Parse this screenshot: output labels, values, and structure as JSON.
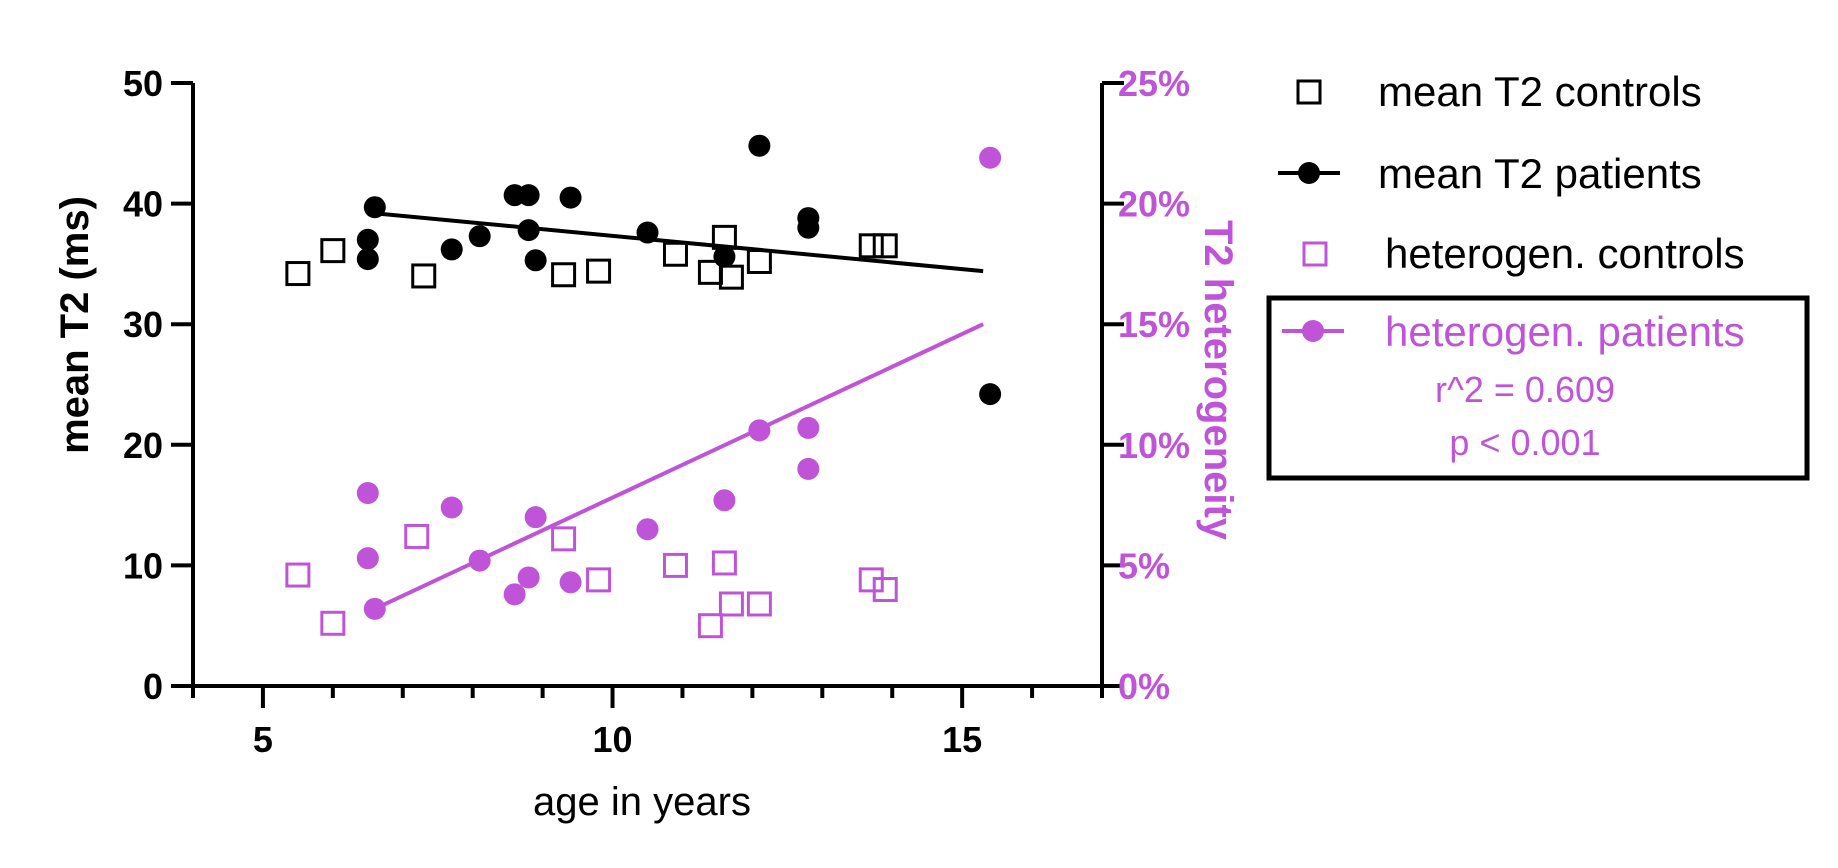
{
  "colors": {
    "black": "#000000",
    "purple": "#c054d9"
  },
  "chart_data": {
    "type": "scatter",
    "x_axis": {
      "label": "age in years",
      "range": [
        4,
        17
      ],
      "ticks": [
        5,
        10,
        15
      ],
      "tick_labels": [
        "5",
        "10",
        "15"
      ],
      "minor_ticks": [
        4,
        6,
        7,
        8,
        9,
        11,
        12,
        13,
        14,
        16,
        17
      ]
    },
    "y_axis_left": {
      "label": "mean T2 (ms)",
      "range": [
        0,
        50
      ],
      "ticks": [
        0,
        10,
        20,
        30,
        40,
        50
      ],
      "tick_labels": [
        "0",
        "10",
        "20",
        "30",
        "40",
        "50"
      ]
    },
    "y_axis_right": {
      "label": "T2 heterogeneity",
      "range": [
        0,
        25
      ],
      "ticks": [
        0,
        5,
        10,
        15,
        20,
        25
      ],
      "tick_labels": [
        "0%",
        "5%",
        "10%",
        "15%",
        "20%",
        "25%"
      ]
    },
    "series": [
      {
        "name": "mean T2 controls",
        "axis": "left",
        "marker": "open-square",
        "color": "#000000",
        "x": [
          5.5,
          6.0,
          7.3,
          9.3,
          9.8,
          10.9,
          11.4,
          11.6,
          11.7,
          12.1,
          13.7,
          13.9
        ],
        "y": [
          34.2,
          36.1,
          34.0,
          34.1,
          34.4,
          35.8,
          34.3,
          37.2,
          33.9,
          35.2,
          36.5,
          36.5
        ]
      },
      {
        "name": "mean T2 patients",
        "axis": "left",
        "marker": "filled-circle",
        "color": "#000000",
        "x": [
          6.5,
          6.5,
          6.6,
          7.7,
          8.1,
          8.6,
          8.8,
          8.8,
          8.9,
          9.4,
          10.5,
          11.6,
          12.1,
          12.8,
          12.8,
          15.4
        ],
        "y": [
          37.0,
          35.4,
          39.7,
          36.2,
          37.3,
          40.7,
          40.7,
          37.8,
          35.3,
          40.5,
          37.6,
          35.6,
          44.8,
          38.8,
          38.0,
          24.2
        ],
        "trend": {
          "x": [
            6.6,
            15.3
          ],
          "y": [
            39.2,
            34.4
          ]
        }
      },
      {
        "name": "heterogen. controls",
        "axis": "right",
        "marker": "open-square",
        "color": "#c054d9",
        "x": [
          5.5,
          6.0,
          7.2,
          9.3,
          9.8,
          10.9,
          11.4,
          11.6,
          11.7,
          12.1,
          13.7,
          13.9
        ],
        "y": [
          4.6,
          2.6,
          6.2,
          6.1,
          4.4,
          5.0,
          2.5,
          5.1,
          3.4,
          3.4,
          4.4,
          4.0
        ]
      },
      {
        "name": "heterogen. patients",
        "axis": "right",
        "marker": "filled-circle",
        "color": "#c054d9",
        "x": [
          6.5,
          6.5,
          6.6,
          7.7,
          8.1,
          8.6,
          8.8,
          8.9,
          9.4,
          10.5,
          11.6,
          12.1,
          12.8,
          12.8,
          15.4
        ],
        "y": [
          8.0,
          5.3,
          3.2,
          7.4,
          5.2,
          3.8,
          4.5,
          7.0,
          4.3,
          6.5,
          7.7,
          10.6,
          10.7,
          9.0,
          21.9
        ],
        "trend": {
          "x": [
            6.6,
            15.3
          ],
          "y": [
            3.2,
            15.0
          ]
        }
      }
    ],
    "annotations": {
      "r_squared": "r^2 = 0.609",
      "p_value": "p < 0.001"
    },
    "legend_position": "right",
    "grid": false
  }
}
